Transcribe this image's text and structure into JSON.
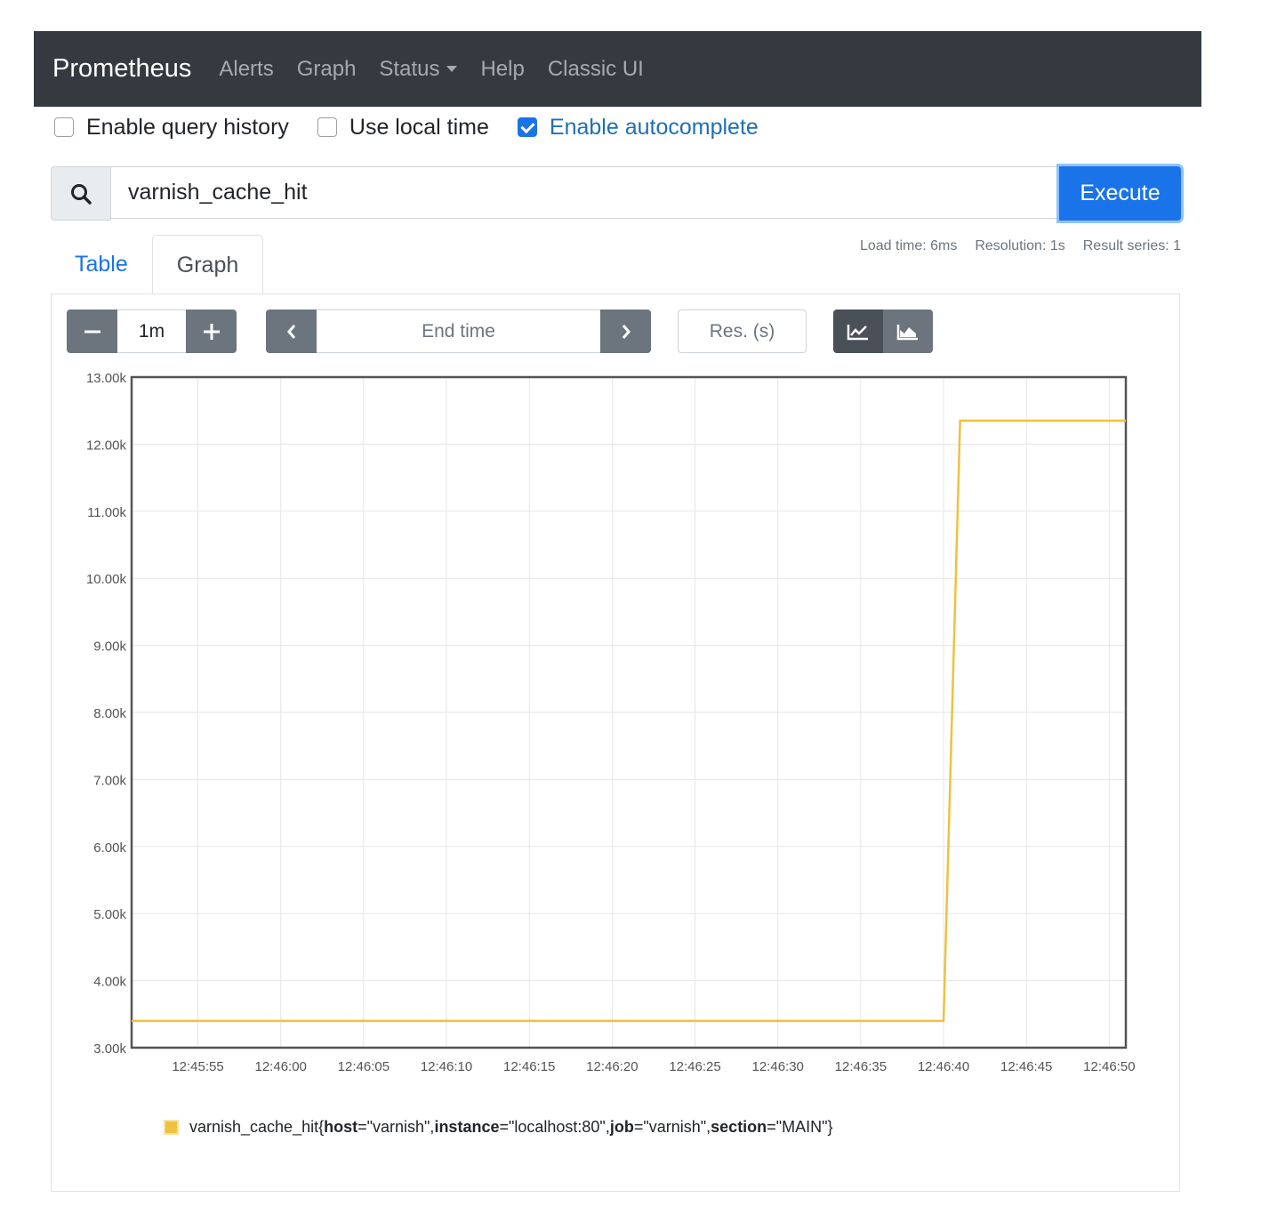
{
  "navbar": {
    "brand": "Prometheus",
    "links": [
      "Alerts",
      "Graph",
      "Status",
      "Help",
      "Classic UI"
    ]
  },
  "options": {
    "query_history": {
      "label": "Enable query history",
      "checked": false
    },
    "local_time": {
      "label": "Use local time",
      "checked": false
    },
    "autocomplete": {
      "label": "Enable autocomplete",
      "checked": true
    }
  },
  "query": {
    "value": "varnish_cache_hit",
    "execute_label": "Execute"
  },
  "tabs": {
    "table": "Table",
    "graph": "Graph"
  },
  "stats": {
    "load_time": "Load time: 6ms",
    "resolution": "Resolution: 1s",
    "result_series": "Result series: 1"
  },
  "controls": {
    "range": "1m",
    "end_time_placeholder": "End time",
    "res_placeholder": "Res. (s)",
    "minus_icon": "minus-icon",
    "plus_icon": "plus-icon",
    "prev_icon": "chevron-left-icon",
    "next_icon": "chevron-right-icon",
    "line_icon": "line-chart-icon",
    "stacked_icon": "area-chart-icon"
  },
  "legend": {
    "metric": "varnish_cache_hit{",
    "labels": [
      {
        "key": "host",
        "value": "=\"varnish\", "
      },
      {
        "key": "instance",
        "value": "=\"localhost:80\", "
      },
      {
        "key": "job",
        "value": "=\"varnish\", "
      },
      {
        "key": "section",
        "value": "=\"MAIN\"}"
      }
    ]
  },
  "chart_data": {
    "type": "line",
    "x": [
      "12:45:51",
      "12:46:40",
      "12:46:41",
      "12:46:51"
    ],
    "values": [
      3400,
      3400,
      12350,
      12350
    ],
    "x_ticks": [
      "12:45:55",
      "12:46:00",
      "12:46:05",
      "12:46:10",
      "12:46:15",
      "12:46:20",
      "12:46:25",
      "12:46:30",
      "12:46:35",
      "12:46:40",
      "12:46:45",
      "12:46:50"
    ],
    "y_ticks": [
      "3.00k",
      "4.00k",
      "5.00k",
      "6.00k",
      "7.00k",
      "8.00k",
      "9.00k",
      "10.00k",
      "11.00k",
      "12.00k",
      "13.00k"
    ],
    "ylim": [
      3000,
      13000
    ],
    "series": [
      {
        "name": "varnish_cache_hit{host=\"varnish\", instance=\"localhost:80\", job=\"varnish\", section=\"MAIN\"}",
        "color": "#edc240"
      }
    ],
    "grid": true
  }
}
